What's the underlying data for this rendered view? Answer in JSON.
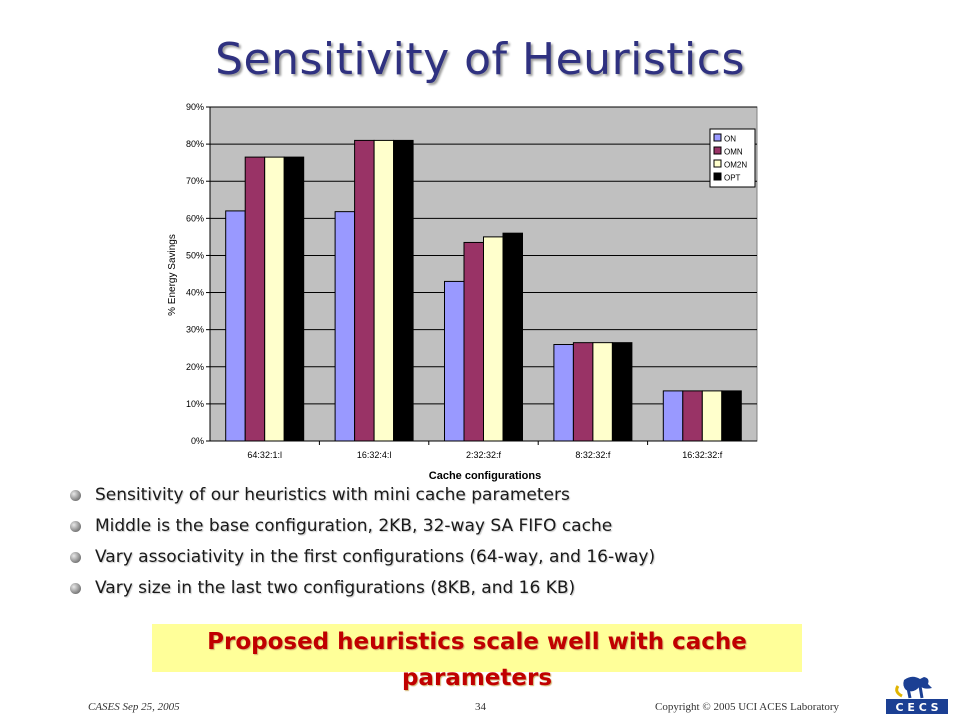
{
  "slide": {
    "title": "Sensitivity of Heuristics",
    "bullets": [
      "Sensitivity of our heuristics with mini cache parameters",
      "Middle is the base configuration, 2KB, 32-way SA FIFO cache",
      "Vary associativity in the first configurations (64-way, and 16-way)",
      "Vary size in the last two configurations (8KB, and 16 KB)"
    ],
    "callout": "Proposed heuristics scale well with cache parameters",
    "footer": {
      "left": "CASES  Sep 25, 2005",
      "page": "34",
      "right": "Copyright © 2005  UCI ACES Laboratory"
    },
    "logo_text": "C E C S"
  },
  "chart_data": {
    "type": "bar",
    "title": "",
    "xlabel": "Cache configurations",
    "ylabel": "% Energy Savings",
    "categories": [
      "64:32:1:l",
      "16:32:4:l",
      "2:32:32:f",
      "8:32:32:f",
      "16:32:32:f"
    ],
    "series": [
      {
        "name": "ON",
        "color": "#9999ff",
        "values": [
          62,
          61.8,
          43,
          26,
          13.5
        ]
      },
      {
        "name": "OMN",
        "color": "#993366",
        "values": [
          76.5,
          81,
          53.5,
          26.5,
          13.5
        ]
      },
      {
        "name": "OM2N",
        "color": "#ffffcc",
        "values": [
          76.5,
          81,
          55,
          26.5,
          13.5
        ]
      },
      {
        "name": "OPT",
        "color": "#000000",
        "values": [
          76.5,
          81,
          56,
          26.5,
          13.5
        ]
      }
    ],
    "ylim": [
      0,
      90
    ],
    "yticks": [
      "0%",
      "10%",
      "20%",
      "30%",
      "40%",
      "50%",
      "60%",
      "70%",
      "80%",
      "90%"
    ],
    "grid": true,
    "legend": "top-right",
    "plot_background": "#c0c0c0"
  }
}
